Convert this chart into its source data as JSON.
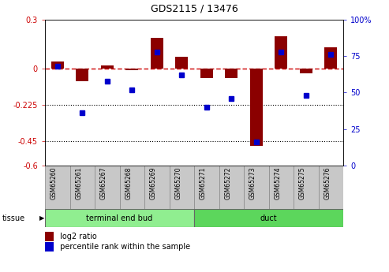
{
  "title": "GDS2115 / 13476",
  "samples": [
    "GSM65260",
    "GSM65261",
    "GSM65267",
    "GSM65268",
    "GSM65269",
    "GSM65270",
    "GSM65271",
    "GSM65272",
    "GSM65273",
    "GSM65274",
    "GSM65275",
    "GSM65276"
  ],
  "log2_ratio": [
    0.04,
    -0.08,
    0.02,
    -0.01,
    0.19,
    0.07,
    -0.06,
    -0.06,
    -0.48,
    0.2,
    -0.03,
    0.13
  ],
  "percentile_rank": [
    68,
    36,
    58,
    52,
    78,
    62,
    40,
    46,
    16,
    78,
    48,
    76
  ],
  "ylim_left": [
    -0.6,
    0.3
  ],
  "ylim_right": [
    0,
    100
  ],
  "yticks_left": [
    0.3,
    0.0,
    -0.225,
    -0.45,
    -0.6
  ],
  "yticks_right": [
    100,
    75,
    50,
    25,
    0
  ],
  "hlines": [
    -0.225,
    -0.45
  ],
  "tissue_groups": [
    {
      "label": "terminal end bud",
      "start": 0,
      "end": 6,
      "color": "#90EE90"
    },
    {
      "label": "duct",
      "start": 6,
      "end": 12,
      "color": "#5CD65C"
    }
  ],
  "bar_color": "#8B0000",
  "dot_color": "#0000CC",
  "zero_line_color": "#CC0000",
  "hline_color": "#000000",
  "bar_width": 0.5,
  "tissue_label": "tissue",
  "legend_bar_label": "log2 ratio",
  "legend_dot_label": "percentile rank within the sample",
  "background_color": "#ffffff",
  "plot_bg": "#ffffff",
  "tick_label_color_left": "#CC0000",
  "tick_label_color_right": "#0000CC",
  "sample_bg": "#C8C8C8"
}
